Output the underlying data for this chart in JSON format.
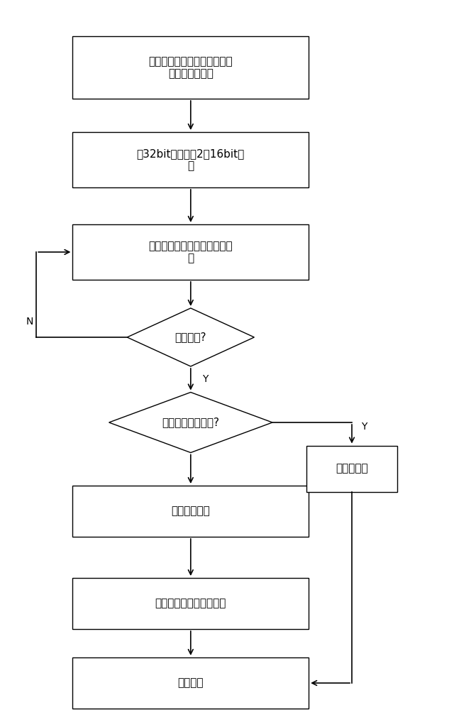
{
  "bg_color": "#ffffff",
  "box_color": "#ffffff",
  "box_edge_color": "#000000",
  "arrow_color": "#000000",
  "text_color": "#000000",
  "font_size": 11,
  "box1_text": "从闪存控制器中顺序读出原始\n数据和校验信息",
  "box2_text": "将32bit数据分为2个16bit数\n据",
  "box3_text": "分别送入两个译码模块进行译\n码",
  "diamond1_text": "译码完成?",
  "diamond2_text": "存在不可纠正错误?",
  "box4_text": "纠正错误数据",
  "box5_text": "通知管理层",
  "box6_text": "数据合并，送入数据缓存",
  "box7_text": "译码结束",
  "label_N": "N",
  "label_Y1": "Y",
  "label_Y2": "Y"
}
